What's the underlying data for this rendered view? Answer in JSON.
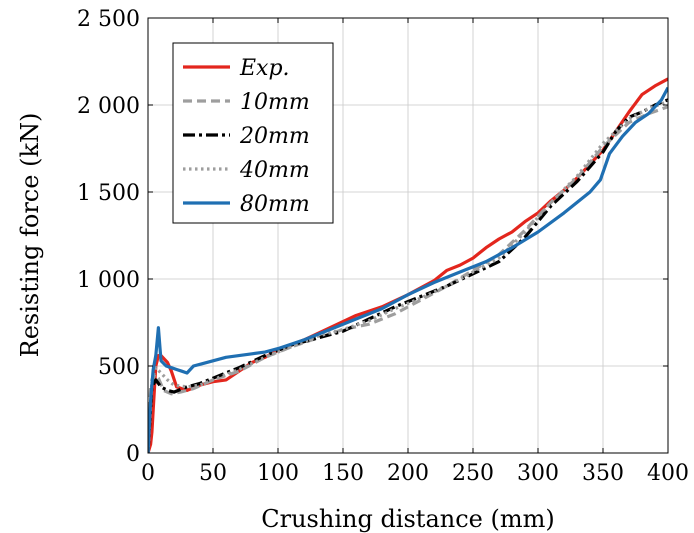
{
  "chart_data": {
    "type": "line",
    "xlabel": "Crushing distance (mm)",
    "ylabel": "Resisting force (kN)",
    "xlim": [
      0,
      400
    ],
    "ylim": [
      0,
      2500
    ],
    "xticks": [
      "0",
      "50",
      "100",
      "150",
      "200",
      "250",
      "300",
      "350",
      "400"
    ],
    "yticks": [
      "0",
      "500",
      "1 000",
      "1 500",
      "2 000",
      "2 500"
    ],
    "grid": true,
    "legend_position": "top-left",
    "series": [
      {
        "name": "Exp.",
        "color": "#e3261d",
        "dash": "solid",
        "x": [
          0,
          2,
          3,
          4,
          6,
          8,
          10,
          15,
          18,
          22,
          30,
          40,
          50,
          60,
          70,
          80,
          90,
          100,
          120,
          140,
          160,
          180,
          200,
          220,
          230,
          240,
          250,
          260,
          270,
          280,
          290,
          300,
          310,
          320,
          330,
          340,
          350,
          360,
          370,
          380,
          390,
          400
        ],
        "y": [
          0,
          50,
          120,
          250,
          500,
          560,
          560,
          520,
          470,
          380,
          360,
          390,
          410,
          420,
          470,
          520,
          550,
          590,
          650,
          720,
          790,
          840,
          910,
          990,
          1050,
          1080,
          1120,
          1180,
          1230,
          1270,
          1330,
          1380,
          1450,
          1510,
          1580,
          1660,
          1740,
          1850,
          1960,
          2060,
          2110,
          2150
        ]
      },
      {
        "name": "10mm",
        "color": "#9e9e9e",
        "dash": "dashed",
        "x": [
          0,
          2,
          5,
          8,
          12,
          18,
          25,
          35,
          50,
          70,
          90,
          110,
          130,
          150,
          170,
          190,
          210,
          230,
          250,
          270,
          290,
          310,
          330,
          350,
          370,
          385,
          400
        ],
        "y": [
          0,
          380,
          450,
          430,
          360,
          340,
          350,
          370,
          420,
          470,
          550,
          610,
          660,
          710,
          740,
          800,
          880,
          960,
          1050,
          1140,
          1280,
          1440,
          1580,
          1760,
          1900,
          1950,
          1990
        ]
      },
      {
        "name": "20mm",
        "color": "#000000",
        "dash": "dashdot",
        "x": [
          0,
          3,
          6,
          10,
          15,
          20,
          30,
          40,
          50,
          70,
          90,
          110,
          130,
          150,
          170,
          190,
          210,
          230,
          250,
          270,
          290,
          310,
          330,
          350,
          360,
          370,
          380,
          390,
          400
        ],
        "y": [
          0,
          380,
          420,
          380,
          360,
          350,
          380,
          400,
          430,
          490,
          560,
          620,
          660,
          700,
          770,
          840,
          900,
          960,
          1030,
          1100,
          1240,
          1420,
          1560,
          1730,
          1850,
          1930,
          1960,
          2000,
          2030
        ]
      },
      {
        "name": "40mm",
        "color": "#9e9e9e",
        "dash": "dotted",
        "x": [
          0,
          3,
          6,
          10,
          15,
          20,
          30,
          40,
          50,
          70,
          90,
          110,
          130,
          150,
          170,
          190,
          210,
          230,
          250,
          270,
          290,
          310,
          330,
          350,
          370,
          385,
          400
        ],
        "y": [
          0,
          420,
          490,
          460,
          420,
          390,
          380,
          390,
          420,
          480,
          550,
          610,
          670,
          710,
          760,
          830,
          890,
          960,
          1040,
          1120,
          1270,
          1440,
          1590,
          1780,
          1920,
          1980,
          2020
        ]
      },
      {
        "name": "80mm",
        "color": "#1f6fb2",
        "dash": "solid",
        "x": [
          0,
          2,
          4,
          6,
          8,
          10,
          14,
          18,
          22,
          26,
          30,
          35,
          40,
          50,
          60,
          70,
          80,
          90,
          100,
          120,
          140,
          160,
          180,
          200,
          220,
          240,
          260,
          280,
          300,
          320,
          340,
          348,
          355,
          365,
          375,
          385,
          395,
          400
        ],
        "y": [
          0,
          300,
          480,
          560,
          720,
          530,
          500,
          490,
          480,
          470,
          460,
          500,
          510,
          530,
          550,
          560,
          570,
          580,
          600,
          650,
          710,
          770,
          830,
          910,
          980,
          1040,
          1100,
          1180,
          1270,
          1380,
          1500,
          1570,
          1720,
          1820,
          1900,
          1950,
          2030,
          2100
        ]
      }
    ]
  }
}
